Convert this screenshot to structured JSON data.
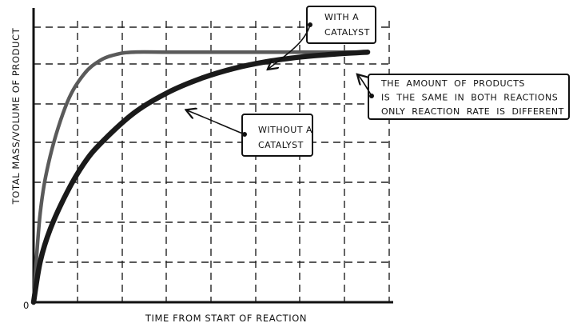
{
  "chart_data": {
    "type": "line",
    "title": "",
    "xlabel": "TIME FROM START OF REACTION",
    "ylabel": "TOTAL MASS/VOLUME OF PRODUCT",
    "origin_label": "0",
    "xlim": [
      0,
      10
    ],
    "ylim": [
      0,
      7
    ],
    "grid": true,
    "legend": "none",
    "series": [
      {
        "color": "#5a5a5a",
        "x": [
          0,
          0.2,
          0.5,
          1,
          1.5,
          2,
          2.5,
          3,
          4,
          5,
          6,
          7,
          8,
          9,
          10
        ],
        "y": [
          0,
          2.2,
          3.6,
          4.9,
          5.6,
          5.95,
          6.1,
          6.15,
          6.15,
          6.15,
          6.15,
          6.15,
          6.15,
          6.15,
          6.15
        ]
      },
      {
        "color": "#1a1a1a",
        "x": [
          0,
          0.2,
          0.5,
          1,
          1.5,
          2,
          3,
          4,
          5,
          6,
          7,
          8,
          9,
          10
        ],
        "y": [
          0,
          1.0,
          1.8,
          2.7,
          3.4,
          3.9,
          4.65,
          5.15,
          5.5,
          5.75,
          5.92,
          6.03,
          6.1,
          6.15
        ]
      }
    ],
    "annotations": [
      {
        "lines": [
          "WITH A",
          "CATALYST"
        ]
      },
      {
        "lines": [
          "WITHOUT A",
          "CATALYST"
        ]
      },
      {
        "lines": [
          "THE  AMOUNT  OF  PRODUCTS",
          "IS  THE  SAME  IN  BOTH  REACTIONS",
          "ONLY  REACTION  RATE  IS  DIFFERENT"
        ]
      }
    ]
  }
}
